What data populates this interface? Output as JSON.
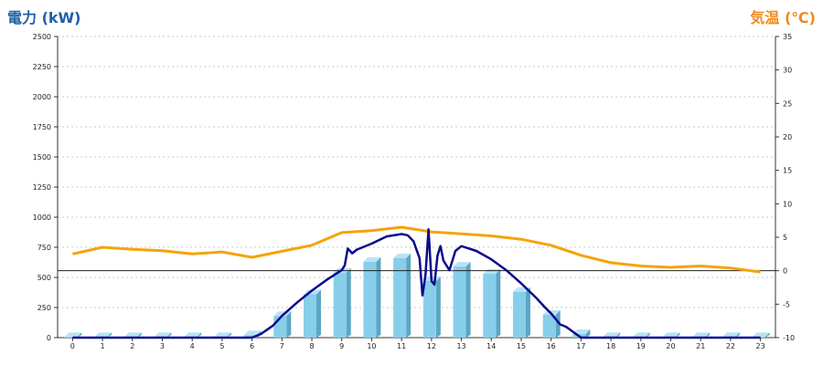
{
  "colors": {
    "power_axis_title": "#1f5fa8",
    "temp_axis_title": "#f08a1c",
    "bar_front": "#87ceeb",
    "bar_side": "#5ba6c4",
    "bar_top": "#b9e3f3",
    "power_line": "#0b0b8c",
    "temp_line": "#f5a30a",
    "grid": "#c8c8c8",
    "zero_line": "#222222"
  },
  "chart_data": {
    "type": "bar",
    "y_left_label": "電力 (kW)",
    "y_right_label": "気温 (℃)",
    "y_left_lim": [
      0,
      2500
    ],
    "y_right_lim": [
      -10,
      35
    ],
    "y_left_ticks": [
      0,
      250,
      500,
      750,
      1000,
      1250,
      1500,
      1750,
      2000,
      2250,
      2500
    ],
    "y_right_ticks": [
      -10,
      -5,
      0,
      5,
      10,
      15,
      20,
      25,
      30,
      35
    ],
    "categories": [
      "0",
      "1",
      "2",
      "3",
      "4",
      "5",
      "6",
      "7",
      "8",
      "9",
      "10",
      "11",
      "12",
      "13",
      "14",
      "15",
      "16",
      "17",
      "18",
      "19",
      "20",
      "21",
      "22",
      "23"
    ],
    "grid": true,
    "series": [
      {
        "type": "bar",
        "axis": "left",
        "values": [
          5,
          5,
          5,
          5,
          5,
          5,
          20,
          180,
          360,
          540,
          630,
          660,
          470,
          590,
          530,
          380,
          190,
          30,
          5,
          5,
          5,
          5,
          5,
          5
        ]
      },
      {
        "type": "line",
        "axis": "left",
        "x": [
          0,
          1,
          2,
          3,
          4,
          5,
          6,
          6.3,
          6.7,
          7,
          7.5,
          8,
          8.5,
          9,
          9.1,
          9.2,
          9.35,
          9.5,
          10,
          10.5,
          11,
          11.2,
          11.4,
          11.6,
          11.7,
          11.8,
          11.9,
          12,
          12.1,
          12.2,
          12.3,
          12.4,
          12.6,
          12.8,
          13,
          13.5,
          14,
          14.5,
          15,
          15.5,
          15.8,
          16,
          16.3,
          16.5,
          17,
          17.5,
          18,
          19,
          20,
          21,
          22,
          23
        ],
        "y": [
          0,
          0,
          0,
          0,
          0,
          0,
          0,
          30,
          100,
          180,
          290,
          390,
          480,
          560,
          600,
          740,
          700,
          730,
          780,
          840,
          860,
          850,
          800,
          660,
          350,
          520,
          900,
          470,
          440,
          680,
          760,
          640,
          560,
          720,
          760,
          720,
          650,
          560,
          450,
          330,
          250,
          200,
          110,
          90,
          0,
          0,
          0,
          0,
          0,
          0,
          0,
          0
        ]
      },
      {
        "type": "line",
        "axis": "right",
        "x": [
          0,
          1,
          2,
          3,
          4,
          5,
          6,
          7,
          8,
          9,
          10,
          11,
          12,
          13,
          14,
          15,
          16,
          17,
          18,
          19,
          20,
          21,
          22,
          23
        ],
        "y": [
          2.5,
          3.5,
          3.2,
          3,
          2.5,
          2.8,
          2,
          2.9,
          3.8,
          5.7,
          6,
          6.5,
          5.8,
          5.5,
          5.2,
          4.7,
          3.8,
          2.3,
          1.2,
          0.7,
          0.5,
          0.7,
          0.4,
          -0.2
        ]
      }
    ]
  }
}
